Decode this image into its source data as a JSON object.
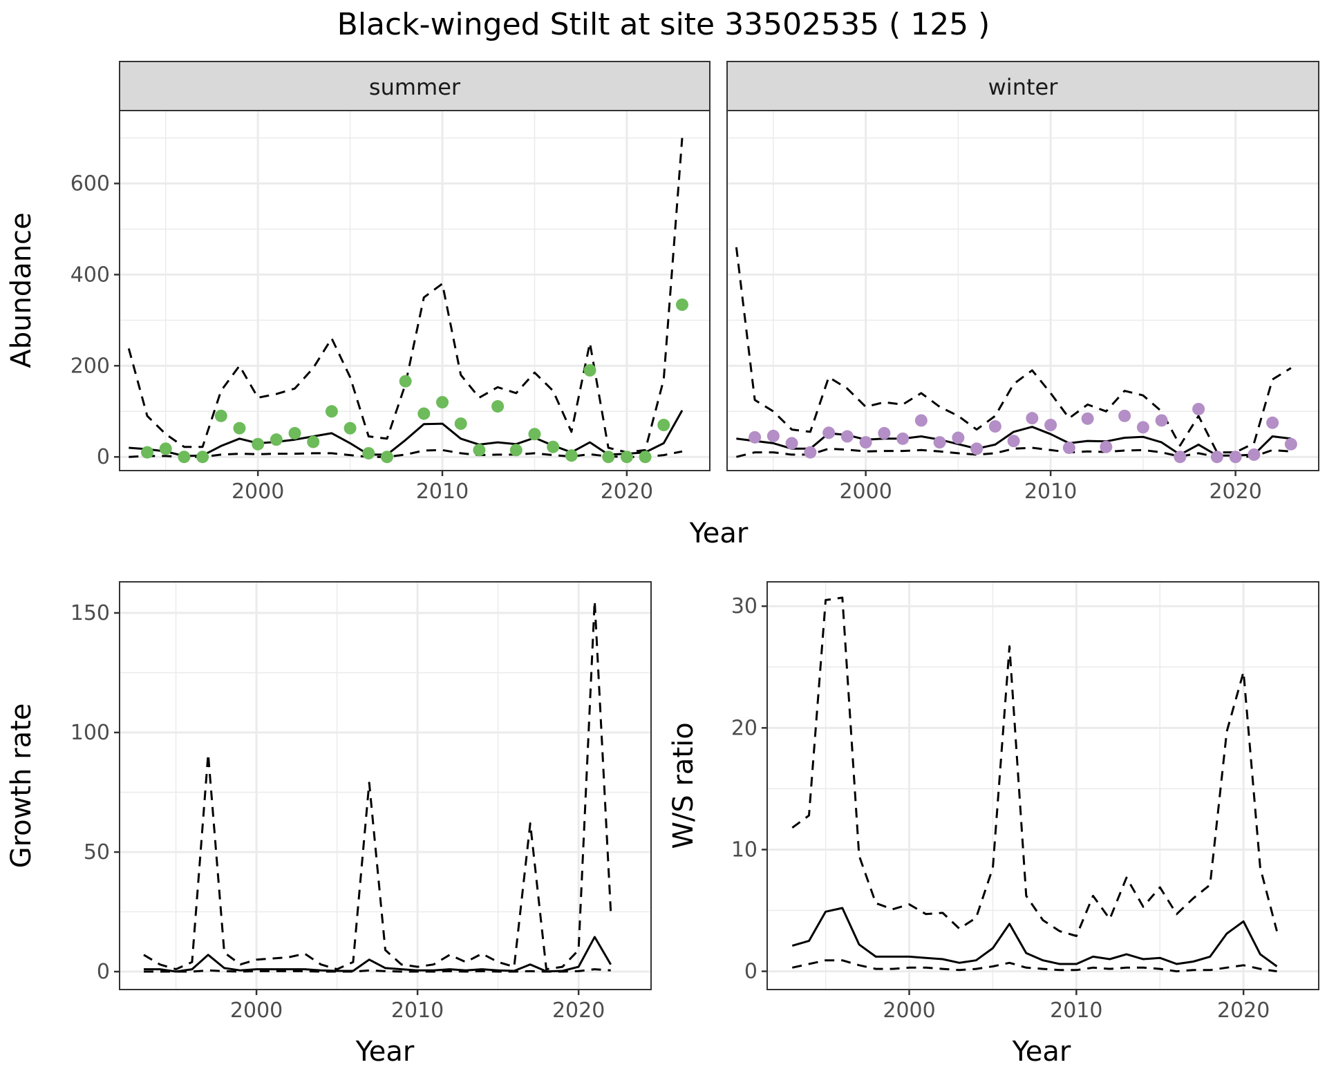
{
  "figure": {
    "title": "Black-winged Stilt at site 33502535 ( 125 )",
    "colors": {
      "summer_points": "#6dbb5a",
      "winter_points": "#b48ec6",
      "line": "#000000",
      "grid": "#ebebeb",
      "strip_bg": "#d9d9d9",
      "panel_border": "#333333"
    }
  },
  "chart_data": [
    {
      "type": "line",
      "panel": "summer",
      "strip_label": "summer",
      "title": "",
      "xlabel": "Year",
      "ylabel": "Abundance",
      "xlim": [
        1992.5,
        2024.5
      ],
      "ylim": [
        -30,
        760
      ],
      "xticks": [
        2000,
        2010,
        2020
      ],
      "xtick_labels": [
        "2000",
        "2010",
        "2020"
      ],
      "yticks": [
        0,
        200,
        400,
        600
      ],
      "ytick_labels": [
        "0",
        "200",
        "400",
        "600"
      ],
      "grid": true,
      "series": [
        {
          "name": "estimate",
          "style": "solid",
          "x": [
            1993,
            1994,
            1995,
            1996,
            1997,
            1998,
            1999,
            2000,
            2001,
            2002,
            2003,
            2004,
            2005,
            2006,
            2007,
            2008,
            2009,
            2010,
            2011,
            2012,
            2013,
            2014,
            2015,
            2016,
            2017,
            2018,
            2019,
            2020,
            2021,
            2022,
            2023
          ],
          "y": [
            20,
            17,
            12,
            2,
            3,
            24,
            40,
            30,
            33,
            38,
            45,
            52,
            30,
            5,
            5,
            37,
            72,
            73,
            40,
            27,
            32,
            28,
            42,
            25,
            10,
            32,
            5,
            7,
            10,
            30,
            102
          ]
        },
        {
          "name": "upper",
          "style": "dashed",
          "x": [
            1993,
            1994,
            1995,
            1996,
            1997,
            1998,
            1999,
            2000,
            2001,
            2002,
            2003,
            2004,
            2005,
            2006,
            2007,
            2008,
            2009,
            2010,
            2011,
            2012,
            2013,
            2014,
            2015,
            2016,
            2017,
            2018,
            2019,
            2020,
            2021,
            2022,
            2023
          ],
          "y": [
            238,
            90,
            50,
            22,
            22,
            145,
            200,
            130,
            138,
            150,
            195,
            260,
            175,
            45,
            40,
            160,
            350,
            380,
            180,
            130,
            153,
            140,
            185,
            145,
            55,
            250,
            20,
            10,
            15,
            170,
            700
          ]
        },
        {
          "name": "lower",
          "style": "dashed",
          "x": [
            1993,
            1994,
            1995,
            1996,
            1997,
            1998,
            1999,
            2000,
            2001,
            2002,
            2003,
            2004,
            2005,
            2006,
            2007,
            2008,
            2009,
            2010,
            2011,
            2012,
            2013,
            2014,
            2015,
            2016,
            2017,
            2018,
            2019,
            2020,
            2021,
            2022,
            2023
          ],
          "y": [
            0,
            2,
            2,
            0,
            0,
            5,
            7,
            6,
            7,
            7,
            8,
            8,
            4,
            0,
            0,
            5,
            14,
            15,
            8,
            4,
            5,
            5,
            8,
            4,
            1,
            6,
            1,
            0,
            0,
            4,
            12
          ]
        },
        {
          "name": "observed",
          "style": "points",
          "x": [
            1994,
            1995,
            1996,
            1997,
            1998,
            1999,
            2000,
            2001,
            2002,
            2003,
            2004,
            2005,
            2006,
            2007,
            2008,
            2009,
            2010,
            2011,
            2012,
            2013,
            2014,
            2015,
            2016,
            2017,
            2018,
            2019,
            2020,
            2021,
            2022,
            2023
          ],
          "y": [
            10,
            18,
            0,
            0,
            90,
            63,
            28,
            38,
            52,
            33,
            100,
            63,
            8,
            0,
            166,
            95,
            120,
            73,
            15,
            111,
            15,
            50,
            22,
            3,
            190,
            0,
            0,
            0,
            70,
            334
          ]
        }
      ]
    },
    {
      "type": "line",
      "panel": "winter",
      "strip_label": "winter",
      "title": "",
      "xlabel": "Year",
      "ylabel": "Abundance",
      "xlim": [
        1992.5,
        2024.5
      ],
      "ylim": [
        -30,
        760
      ],
      "xticks": [
        2000,
        2010,
        2020
      ],
      "xtick_labels": [
        "2000",
        "2010",
        "2020"
      ],
      "yticks": [
        0,
        200,
        400,
        600
      ],
      "ytick_labels": [
        "0",
        "200",
        "400",
        "600"
      ],
      "grid": true,
      "series": [
        {
          "name": "estimate",
          "style": "solid",
          "x": [
            1993,
            1994,
            1995,
            1996,
            1997,
            1998,
            1999,
            2000,
            2001,
            2002,
            2003,
            2004,
            2005,
            2006,
            2007,
            2008,
            2009,
            2010,
            2011,
            2012,
            2013,
            2014,
            2015,
            2016,
            2017,
            2018,
            2019,
            2020,
            2021,
            2022,
            2023
          ],
          "y": [
            40,
            35,
            30,
            18,
            18,
            52,
            48,
            38,
            40,
            40,
            45,
            38,
            28,
            18,
            27,
            55,
            66,
            50,
            30,
            35,
            34,
            42,
            44,
            32,
            5,
            27,
            3,
            3,
            5,
            45,
            40
          ]
        },
        {
          "name": "upper",
          "style": "dashed",
          "x": [
            1993,
            1994,
            1995,
            1996,
            1997,
            1998,
            1999,
            2000,
            2001,
            2002,
            2003,
            2004,
            2005,
            2006,
            2007,
            2008,
            2009,
            2010,
            2011,
            2012,
            2013,
            2014,
            2015,
            2016,
            2017,
            2018,
            2019,
            2020,
            2021,
            2022,
            2023
          ],
          "y": [
            460,
            125,
            100,
            60,
            55,
            175,
            150,
            110,
            120,
            115,
            140,
            110,
            90,
            60,
            90,
            160,
            190,
            140,
            85,
            115,
            100,
            145,
            135,
            100,
            25,
            90,
            10,
            10,
            30,
            170,
            195
          ]
        },
        {
          "name": "lower",
          "style": "dashed",
          "x": [
            1993,
            1994,
            1995,
            1996,
            1997,
            1998,
            1999,
            2000,
            2001,
            2002,
            2003,
            2004,
            2005,
            2006,
            2007,
            2008,
            2009,
            2010,
            2011,
            2012,
            2013,
            2014,
            2015,
            2016,
            2017,
            2018,
            2019,
            2020,
            2021,
            2022,
            2023
          ],
          "y": [
            0,
            10,
            10,
            5,
            5,
            18,
            16,
            12,
            13,
            13,
            15,
            12,
            8,
            5,
            8,
            18,
            20,
            15,
            10,
            12,
            11,
            14,
            15,
            10,
            1,
            8,
            0,
            0,
            1,
            15,
            12
          ]
        },
        {
          "name": "observed",
          "style": "points",
          "x": [
            1994,
            1995,
            1996,
            1997,
            1998,
            1999,
            2000,
            2001,
            2002,
            2003,
            2004,
            2005,
            2006,
            2007,
            2008,
            2009,
            2010,
            2011,
            2012,
            2013,
            2014,
            2015,
            2016,
            2017,
            2018,
            2019,
            2020,
            2021,
            2022,
            2023
          ],
          "y": [
            43,
            46,
            30,
            10,
            53,
            45,
            32,
            52,
            40,
            80,
            32,
            42,
            18,
            67,
            35,
            85,
            70,
            20,
            84,
            22,
            90,
            65,
            80,
            0,
            105,
            0,
            0,
            5,
            75,
            28
          ]
        }
      ]
    },
    {
      "type": "line",
      "panel": "growth",
      "title": "",
      "xlabel": "Year",
      "ylabel": "Growth rate",
      "xlim": [
        1991.5,
        2024.5
      ],
      "ylim": [
        -7.5,
        163
      ],
      "xticks": [
        2000,
        2010,
        2020
      ],
      "xtick_labels": [
        "2000",
        "2010",
        "2020"
      ],
      "yticks": [
        0,
        50,
        100,
        150
      ],
      "ytick_labels": [
        "0",
        "50",
        "100",
        "150"
      ],
      "grid": true,
      "series": [
        {
          "name": "estimate",
          "style": "solid",
          "x": [
            1993,
            1994,
            1995,
            1996,
            1997,
            1998,
            1999,
            2000,
            2001,
            2002,
            2003,
            2004,
            2005,
            2006,
            2007,
            2008,
            2009,
            2010,
            2011,
            2012,
            2013,
            2014,
            2015,
            2016,
            2017,
            2018,
            2019,
            2020,
            2021,
            2022
          ],
          "y": [
            1,
            1,
            0,
            1,
            7,
            1.5,
            0.5,
            1,
            1,
            1,
            1,
            0.5,
            0.3,
            0.3,
            5,
            1.5,
            1,
            0.5,
            0.5,
            1,
            0.5,
            1,
            0.5,
            0.3,
            3,
            0.1,
            0.3,
            2,
            14.5,
            3
          ]
        },
        {
          "name": "upper",
          "style": "dashed",
          "x": [
            1993,
            1994,
            1995,
            1996,
            1997,
            1998,
            1999,
            2000,
            2001,
            2002,
            2003,
            2004,
            2005,
            2006,
            2007,
            2008,
            2009,
            2010,
            2011,
            2012,
            2013,
            2014,
            2015,
            2016,
            2017,
            2018,
            2019,
            2020,
            2021,
            2022
          ],
          "y": [
            7,
            3,
            1,
            4,
            91,
            8,
            3,
            5,
            5.5,
            6,
            7.5,
            3,
            1,
            4,
            79,
            9,
            3,
            2,
            3,
            7,
            4,
            7.5,
            4,
            2,
            62,
            1,
            2,
            9,
            155,
            25
          ]
        },
        {
          "name": "lower",
          "style": "dashed",
          "x": [
            1993,
            1994,
            1995,
            1996,
            1997,
            1998,
            1999,
            2000,
            2001,
            2002,
            2003,
            2004,
            2005,
            2006,
            2007,
            2008,
            2009,
            2010,
            2011,
            2012,
            2013,
            2014,
            2015,
            2016,
            2017,
            2018,
            2019,
            2020,
            2021,
            2022
          ],
          "y": [
            0,
            0,
            0,
            0,
            0.5,
            0.2,
            0,
            0.2,
            0.2,
            0.2,
            0.2,
            0,
            0,
            0,
            0.5,
            0.2,
            0,
            0,
            0,
            0.2,
            0,
            0.2,
            0,
            0,
            0.2,
            0,
            0,
            0.2,
            1,
            0.5
          ]
        }
      ]
    },
    {
      "type": "line",
      "panel": "ws_ratio",
      "title": "",
      "xlabel": "Year",
      "ylabel": "W/S ratio",
      "xlim": [
        1991.5,
        2024.5
      ],
      "ylim": [
        -1.5,
        32
      ],
      "xticks": [
        2000,
        2010,
        2020
      ],
      "xtick_labels": [
        "2000",
        "2010",
        "2020"
      ],
      "yticks": [
        0,
        10,
        20,
        30
      ],
      "ytick_labels": [
        "0",
        "10",
        "20",
        "30"
      ],
      "grid": true,
      "series": [
        {
          "name": "estimate",
          "style": "solid",
          "x": [
            1993,
            1994,
            1995,
            1996,
            1997,
            1998,
            1999,
            2000,
            2001,
            2002,
            2003,
            2004,
            2005,
            2006,
            2007,
            2008,
            2009,
            2010,
            2011,
            2012,
            2013,
            2014,
            2015,
            2016,
            2017,
            2018,
            2019,
            2020,
            2021,
            2022
          ],
          "y": [
            2.1,
            2.5,
            4.9,
            5.2,
            2.2,
            1.2,
            1.2,
            1.2,
            1.1,
            1.0,
            0.7,
            0.9,
            1.9,
            3.9,
            1.5,
            0.9,
            0.6,
            0.6,
            1.2,
            1.0,
            1.4,
            1.0,
            1.1,
            0.6,
            0.8,
            1.2,
            3.1,
            4.1,
            1.4,
            0.4
          ]
        },
        {
          "name": "upper",
          "style": "dashed",
          "x": [
            1993,
            1994,
            1995,
            1996,
            1997,
            1998,
            1999,
            2000,
            2001,
            2002,
            2003,
            2004,
            2005,
            2006,
            2007,
            2008,
            2009,
            2010,
            2011,
            2012,
            2013,
            2014,
            2015,
            2016,
            2017,
            2018,
            2019,
            2020,
            2021,
            2022
          ],
          "y": [
            11.8,
            12.8,
            30.5,
            30.7,
            9.5,
            5.6,
            5.1,
            5.5,
            4.7,
            4.8,
            3.5,
            4.4,
            8.5,
            26.7,
            6.2,
            4.2,
            3.3,
            2.9,
            6.2,
            4.3,
            7.7,
            5.3,
            6.9,
            4.7,
            6.0,
            7.1,
            19.7,
            24.6,
            8.5,
            3.3
          ]
        },
        {
          "name": "lower",
          "style": "dashed",
          "x": [
            1993,
            1994,
            1995,
            1996,
            1997,
            1998,
            1999,
            2000,
            2001,
            2002,
            2003,
            2004,
            2005,
            2006,
            2007,
            2008,
            2009,
            2010,
            2011,
            2012,
            2013,
            2014,
            2015,
            2016,
            2017,
            2018,
            2019,
            2020,
            2021,
            2022
          ],
          "y": [
            0.3,
            0.6,
            0.9,
            0.9,
            0.5,
            0.2,
            0.2,
            0.3,
            0.3,
            0.2,
            0.1,
            0.2,
            0.4,
            0.7,
            0.3,
            0.2,
            0.1,
            0.1,
            0.3,
            0.2,
            0.3,
            0.3,
            0.2,
            0.0,
            0.1,
            0.1,
            0.3,
            0.5,
            0.2,
            0.0
          ]
        }
      ]
    }
  ]
}
